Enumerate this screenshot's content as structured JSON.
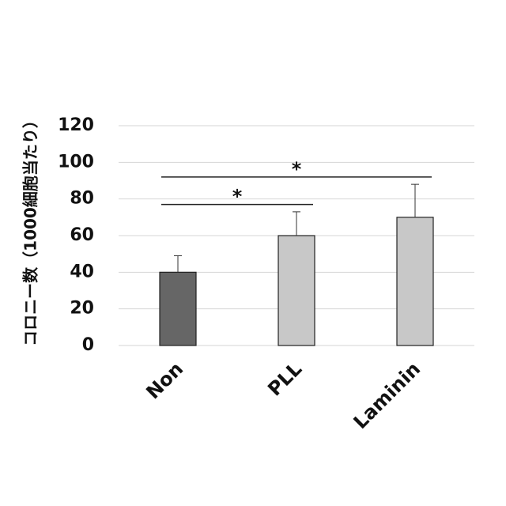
{
  "chart_data": {
    "type": "bar",
    "categories": [
      "Non",
      "PLL",
      "Laminin"
    ],
    "values": [
      40,
      60,
      70
    ],
    "errors": [
      9,
      13,
      18
    ],
    "bar_colors": [
      "#666666",
      "#c8c8c8",
      "#c8c8c8"
    ],
    "ylabel": "コロニー数（1000細胞当たり）",
    "ylim": [
      0,
      120
    ],
    "yticks": [
      "0",
      "20",
      "40",
      "60",
      "80",
      "100",
      "120"
    ],
    "grid": true,
    "significance": [
      {
        "from": "Non",
        "to": "PLL",
        "y": 77,
        "label": "*"
      },
      {
        "from": "Non",
        "to": "Laminin",
        "y": 92,
        "label": "*"
      }
    ]
  }
}
